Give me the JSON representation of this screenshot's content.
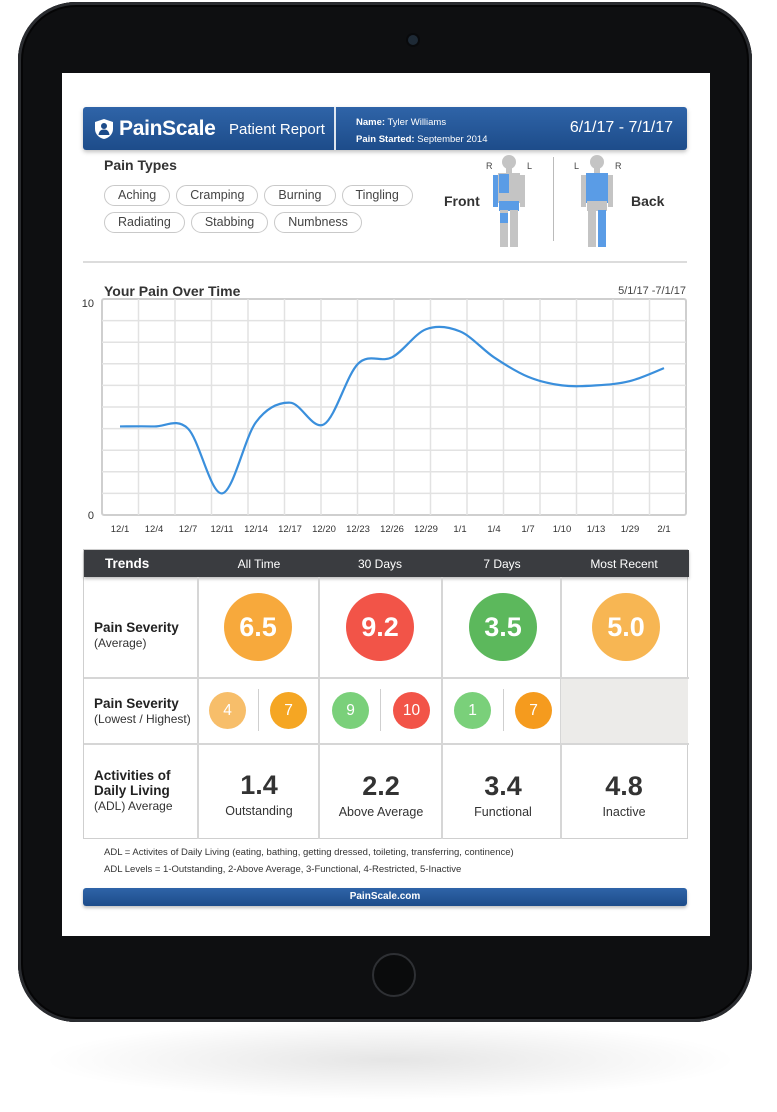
{
  "colors": {
    "brand_blue": "#1d4c8a",
    "orange": "#f7a93c",
    "light_orange": "#f7be6a",
    "red": "#f25448",
    "green": "#5cb85c",
    "light_green": "#7ad07a",
    "deep_orange": "#f59b1e",
    "line": "#3a8fdc"
  },
  "header": {
    "brand": "PainScale",
    "subtitle": "Patient Report",
    "name_label": "Name:",
    "name_value": "Tyler Williams",
    "started_label": "Pain Started:",
    "started_value": "September 2014",
    "date_range": "6/1/17 - 7/1/17"
  },
  "pain_types": {
    "title": "Pain Types",
    "row1": [
      "Aching",
      "Cramping",
      "Burning",
      "Tingling"
    ],
    "row2": [
      "Radiating",
      "Stabbing",
      "Numbness"
    ]
  },
  "body": {
    "front_label": "Front",
    "back_label": "Back",
    "front_r": "R",
    "front_l": "L",
    "back_l": "L",
    "back_r": "R"
  },
  "chart_data": {
    "type": "line",
    "title": "Your Pain Over Time",
    "subtitle": "5/1/17 -7/1/17",
    "x": [
      "12/1",
      "12/4",
      "12/7",
      "12/11",
      "12/14",
      "12/17",
      "12/20",
      "12/23",
      "12/26",
      "12/29",
      "1/1",
      "1/4",
      "1/7",
      "1/10",
      "1/13",
      "1/29",
      "2/1"
    ],
    "y_tick_labels": [
      "0",
      "10"
    ],
    "ylim": [
      0,
      10
    ],
    "grid": true,
    "series": [
      {
        "values": [
          4.1,
          4.1,
          4.0,
          1.0,
          4.3,
          5.2,
          4.2,
          7.0,
          7.3,
          8.6,
          8.5,
          7.3,
          6.4,
          6.0,
          6.0,
          6.2,
          6.8
        ]
      }
    ]
  },
  "trends": {
    "header": "Trends",
    "columns": [
      "All Time",
      "30 Days",
      "7 Days",
      "Most Recent"
    ],
    "row1_label": "Pain Severity",
    "row1_sub": "(Average)",
    "averages": [
      "6.5",
      "9.2",
      "3.5",
      "5.0"
    ],
    "row2_label": "Pain Severity",
    "row2_sub": "(Lowest / Highest)",
    "low_high": [
      [
        "4",
        "7"
      ],
      [
        "9",
        "10"
      ],
      [
        "1",
        "7"
      ]
    ],
    "row3_label_a": "Activities of",
    "row3_label_b": "Daily Living",
    "row3_sub": "(ADL) Average",
    "adl_values": [
      "1.4",
      "2.2",
      "3.4",
      "4.8"
    ],
    "adl_labels": [
      "Outstanding",
      "Above Average",
      "Functional",
      "Inactive"
    ]
  },
  "notes": {
    "line1": "ADL = Activites of Daily Living (eating, bathing, getting dressed, toileting, transferring, continence)",
    "line2": "ADL Levels = 1-Outstanding, 2-Above Average, 3-Functional, 4-Restricted, 5-Inactive"
  },
  "footer": "PainScale.com"
}
